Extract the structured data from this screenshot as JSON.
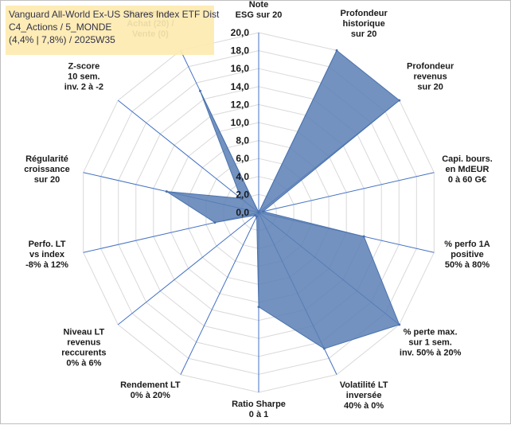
{
  "title_box": {
    "line1": "Vanguard All-World Ex-US Shares Index ETF Dist",
    "line2": "C4_Actions / 5_MONDE",
    "line3": "(4,4% | 7,8%) / 2025W35"
  },
  "chart_data": {
    "type": "radar",
    "rmax": 20,
    "ticks": [
      "0,0",
      "2,0",
      "4,0",
      "6,0",
      "8,0",
      "10,0",
      "12,0",
      "14,0",
      "16,0",
      "18,0",
      "20,0"
    ],
    "axes": [
      {
        "label": [
          "Note",
          "ESG sur 20"
        ],
        "value": 0
      },
      {
        "label": [
          "Profondeur",
          "historique",
          "sur 20"
        ],
        "value": 20
      },
      {
        "label": [
          "Profondeur",
          "revenus",
          "sur 20"
        ],
        "value": 20
      },
      {
        "label": [
          "Capi. bours.",
          "en MdEUR",
          "0 à 60 G€"
        ],
        "value": 0.5
      },
      {
        "label": [
          "% perfo 1A",
          "positive",
          "50% à 80%"
        ],
        "value": 12
      },
      {
        "label": [
          "% perte max.",
          "sur 1 sem.",
          "inv. 50% à 20%"
        ],
        "value": 20
      },
      {
        "label": [
          "Volatilité LT",
          "inversée",
          "40% à 0%"
        ],
        "value": 16.8
      },
      {
        "label": [
          "Ratio Sharpe",
          "0 à 1"
        ],
        "value": 10.5
      },
      {
        "label": [
          "Rendement LT",
          "0% à 20%"
        ],
        "value": 0.5
      },
      {
        "label": [
          "Niveau LT",
          "revenus",
          "reccurents",
          "0% à 6%"
        ],
        "value": 0.5
      },
      {
        "label": [
          "Perfo. LT",
          "vs index",
          "-8% à 12%"
        ],
        "value": 5
      },
      {
        "label": [
          "Régularité",
          "croissance",
          "sur 20"
        ],
        "value": 10.5
      },
      {
        "label": [
          "Z-score",
          "10 sem.",
          "inv. 2 à -2"
        ],
        "value": 2.5
      },
      {
        "label": [
          "Momentum",
          "Achat (20) /",
          "Vente (0)"
        ],
        "value": 15
      }
    ],
    "colors": {
      "fill": "#5b7fb5",
      "stroke": "#4a72ad",
      "grid": "#d9d9d9",
      "axis": "#4472c4"
    }
  }
}
